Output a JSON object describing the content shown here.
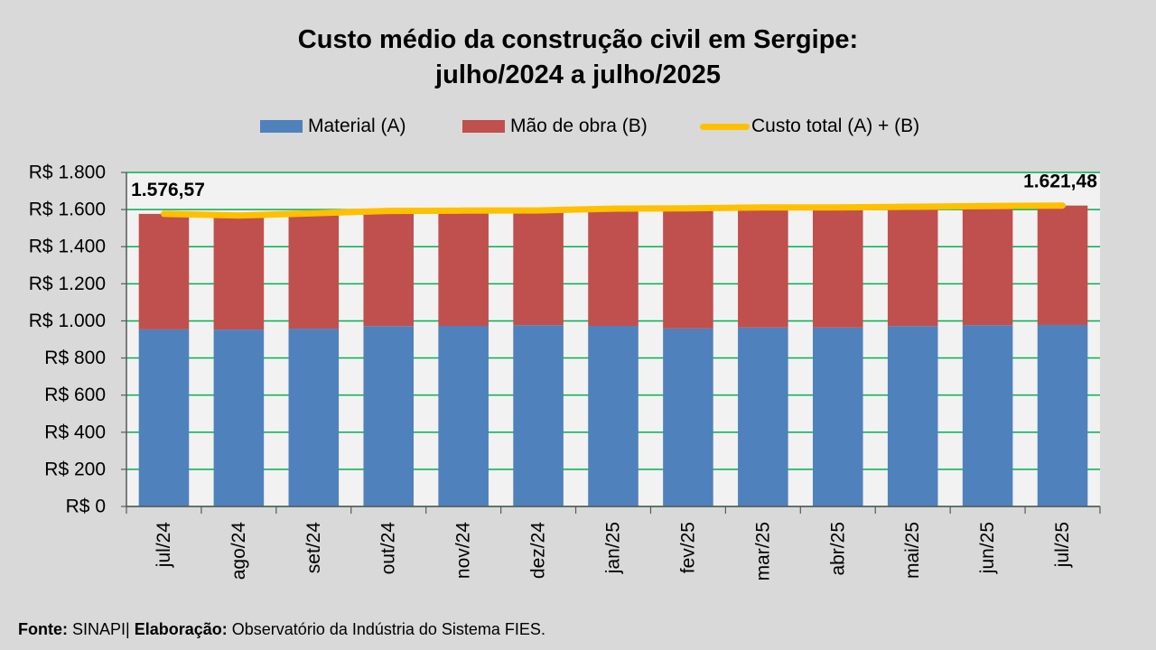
{
  "colors": {
    "background": "#d9d9d9",
    "plot_background": "#f2f2f2",
    "gridline": "#00b050",
    "axis": "#595959",
    "text": "#000000"
  },
  "footer": {
    "source_label": "Fonte:",
    "source": "SINAPI|",
    "credit_label": "Elaboração:",
    "credit": "Observatório da Indústria do Sistema FIES."
  },
  "chart_data": {
    "type": "bar",
    "stacked": true,
    "title_lines": [
      "Custo médio da construção civil em Sergipe:",
      "julho/2024 a julho/2025"
    ],
    "categories": [
      "jul/24",
      "ago/24",
      "set/24",
      "out/24",
      "nov/24",
      "dez/24",
      "jan/25",
      "fev/25",
      "mar/25",
      "abr/25",
      "mai/25",
      "jun/25",
      "jul/25"
    ],
    "series": [
      {
        "name": "Material (A)",
        "type": "bar",
        "color": "#4f81bd",
        "values": [
          954,
          953,
          958,
          972,
          973,
          977,
          973,
          959,
          964,
          964,
          972,
          977,
          978
        ]
      },
      {
        "name": "Mão de obra (B)",
        "type": "bar",
        "color": "#c0504d",
        "values": [
          622.57,
          615,
          622,
          621,
          621,
          618,
          632,
          648,
          647,
          647,
          643,
          642,
          643.48
        ]
      },
      {
        "name": "Custo total (A) + (B)",
        "type": "line",
        "color": "#ffc000",
        "values": [
          1576.57,
          1568,
          1580,
          1593,
          1594,
          1595,
          1605,
          1607,
          1611,
          1611,
          1615,
          1619,
          1621.48
        ]
      }
    ],
    "ylim": [
      0,
      1800
    ],
    "ytick_values": [
      0,
      200,
      400,
      600,
      800,
      1000,
      1200,
      1400,
      1600,
      1800
    ],
    "ytick_labels": [
      "R$ 0",
      "R$ 200",
      "R$ 400",
      "R$ 600",
      "R$ 800",
      "R$ 1.000",
      "R$ 1.200",
      "R$ 1.400",
      "R$ 1.600",
      "R$ 1.800"
    ],
    "data_labels": [
      {
        "series": 2,
        "index": 0,
        "text": "1.576,57"
      },
      {
        "series": 2,
        "index": 12,
        "text": "1.621,48"
      }
    ],
    "grid": true,
    "legend_position": "top"
  }
}
